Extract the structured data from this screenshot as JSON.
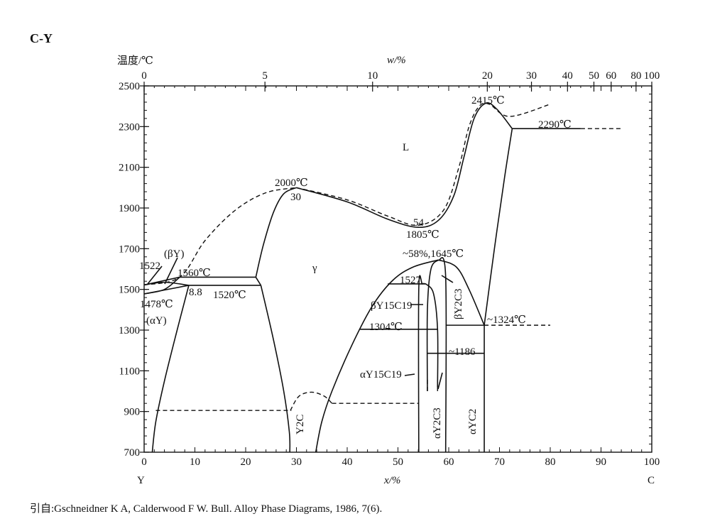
{
  "title": "C-Y",
  "y_axis_label": "温度/℃",
  "top_axis_label": "w/%",
  "bottom_axis_label": "x/%",
  "left_element": "Y",
  "right_element": "C",
  "citation": "引自:Gschneidner K A, Calderwood F W. Bull. Alloy Phase Diagrams, 1986, 7(6).",
  "chart_data": {
    "type": "phase-diagram",
    "xlim": [
      0,
      100
    ],
    "ylim": [
      700,
      2500
    ],
    "x_ticks": [
      "0",
      "10",
      "20",
      "30",
      "40",
      "50",
      "60",
      "70",
      "80",
      "90",
      "100"
    ],
    "y_ticks": [
      "700",
      "900",
      "1100",
      "1300",
      "1500",
      "1700",
      "1900",
      "2100",
      "2300",
      "2500"
    ],
    "top_ticks": [
      {
        "label": "0",
        "x": 0
      },
      {
        "label": "5",
        "x": 23.8
      },
      {
        "label": "10",
        "x": 45
      },
      {
        "label": "20",
        "x": 67.6
      },
      {
        "label": "30",
        "x": 76.3
      },
      {
        "label": "40",
        "x": 83.4
      },
      {
        "label": "50",
        "x": 88.6
      },
      {
        "label": "60",
        "x": 92
      },
      {
        "label": "80",
        "x": 96.9
      },
      {
        "label": "100",
        "x": 100
      }
    ],
    "solid_curves": [
      [
        [
          30,
          2000
        ],
        [
          40,
          1930
        ],
        [
          48,
          1845
        ],
        [
          54,
          1805
        ],
        [
          58,
          1840
        ],
        [
          61,
          1960
        ],
        [
          63,
          2150
        ],
        [
          65,
          2340
        ],
        [
          67.3,
          2415
        ],
        [
          69.5,
          2385
        ],
        [
          72.5,
          2290
        ]
      ],
      [
        [
          22,
          1560
        ],
        [
          23.5,
          1720
        ],
        [
          25.5,
          1880
        ],
        [
          27.5,
          1970
        ],
        [
          30,
          2000
        ]
      ],
      [
        [
          72.5,
          2290
        ],
        [
          86,
          2290
        ]
      ],
      [
        [
          72.5,
          2290
        ],
        [
          71,
          2050
        ],
        [
          69,
          1700
        ],
        [
          67,
          1324
        ]
      ],
      [
        [
          67,
          1324
        ],
        [
          67,
          700
        ]
      ],
      [
        [
          7,
          1560
        ],
        [
          22,
          1560
        ]
      ],
      [
        [
          8.8,
          1520
        ],
        [
          23,
          1520
        ]
      ],
      [
        [
          22,
          1560
        ],
        [
          23,
          1520
        ]
      ],
      [
        [
          0,
          1522
        ],
        [
          7,
          1560
        ]
      ],
      [
        [
          0,
          1522
        ],
        [
          4,
          1535
        ],
        [
          8.8,
          1520
        ]
      ],
      [
        [
          0,
          1478
        ],
        [
          8.8,
          1520
        ]
      ],
      [
        [
          0,
          1478
        ],
        [
          4,
          1500
        ],
        [
          7,
          1560
        ]
      ],
      [
        [
          8.8,
          1520
        ],
        [
          6.5,
          1300
        ],
        [
          4,
          1050
        ],
        [
          2.3,
          850
        ],
        [
          1.6,
          700
        ]
      ],
      [
        [
          23,
          1520
        ],
        [
          25.5,
          1250
        ],
        [
          27.5,
          1000
        ],
        [
          28.6,
          800
        ],
        [
          28.7,
          700
        ]
      ],
      [
        [
          33.8,
          700
        ],
        [
          35,
          850
        ],
        [
          37,
          1000
        ],
        [
          41,
          1230
        ],
        [
          45,
          1420
        ],
        [
          49,
          1545
        ],
        [
          53,
          1610
        ],
        [
          58,
          1645
        ]
      ],
      [
        [
          58,
          1645
        ],
        [
          61.5,
          1610
        ],
        [
          64,
          1500
        ],
        [
          67,
          1324
        ]
      ],
      [
        [
          48,
          1527
        ],
        [
          55.5,
          1527
        ]
      ],
      [
        [
          54.1,
          700
        ],
        [
          54.1,
          1500
        ],
        [
          54.8,
          1527
        ],
        [
          55.5,
          1527
        ]
      ],
      [
        [
          55.8,
          1000
        ],
        [
          55.8,
          1400
        ],
        [
          56.5,
          1600
        ],
        [
          58,
          1645
        ]
      ],
      [
        [
          55.5,
          1527
        ],
        [
          57,
          1480
        ],
        [
          57.8,
          1304
        ],
        [
          57.8,
          1020
        ]
      ],
      [
        [
          58,
          1645
        ],
        [
          59.4,
          1560
        ],
        [
          59.4,
          700
        ]
      ],
      [
        [
          42.5,
          1304
        ],
        [
          57.8,
          1304
        ]
      ],
      [
        [
          59.4,
          1324
        ],
        [
          67,
          1324
        ]
      ],
      [
        [
          55.8,
          1186
        ],
        [
          67,
          1186
        ]
      ]
    ],
    "dashed_curves": [
      [
        [
          0,
          1522
        ],
        [
          7,
          1560
        ],
        [
          12,
          1740
        ],
        [
          18,
          1890
        ],
        [
          24,
          1975
        ],
        [
          30,
          2000
        ]
      ],
      [
        [
          30,
          2000
        ],
        [
          40,
          1940
        ],
        [
          48,
          1860
        ],
        [
          54,
          1815
        ],
        [
          59,
          1890
        ],
        [
          62,
          2100
        ],
        [
          64,
          2300
        ],
        [
          66,
          2400
        ],
        [
          68,
          2410
        ],
        [
          72,
          2350
        ],
        [
          80,
          2410
        ]
      ],
      [
        [
          86,
          2290
        ],
        [
          94,
          2290
        ]
      ],
      [
        [
          67,
          1324
        ],
        [
          80,
          1324
        ]
      ],
      [
        [
          2.3,
          905
        ],
        [
          29,
          905
        ]
      ],
      [
        [
          28.8,
          905
        ],
        [
          30.5,
          975
        ],
        [
          33,
          995
        ],
        [
          35.5,
          975
        ],
        [
          37,
          940
        ]
      ],
      [
        [
          37,
          940
        ],
        [
          54,
          940
        ]
      ],
      [
        [
          55.8,
          1000
        ],
        [
          55.8,
          1060
        ]
      ],
      [
        [
          57.8,
          1000
        ],
        [
          57.8,
          1060
        ]
      ]
    ],
    "labels": {
      "liquid": "L",
      "gamma": "γ",
      "t2415": "2415℃",
      "t2290": "2290℃",
      "t2000": "2000℃",
      "c30": "30",
      "c54": "54",
      "t1805": "1805℃",
      "t1645": "~58%,1645℃",
      "beta_y": "(βY)",
      "t1522": "1522",
      "t1560": "1560℃",
      "t1527": "1527",
      "c88": "8.8",
      "t1520": "1520℃",
      "t1478": "1478℃",
      "alpha_y": "(αY)",
      "beta_y15c19": "βY15C19",
      "beta_y2c3": "βY2C3",
      "t1324": "~1324℃",
      "t1304": "1304℃",
      "t1186": "~1186",
      "alpha_y15c19": "αY15C19",
      "y2c": "Y2C",
      "alpha_y2c3": "αY2C3",
      "alpha_yc2": "αYC2"
    }
  }
}
